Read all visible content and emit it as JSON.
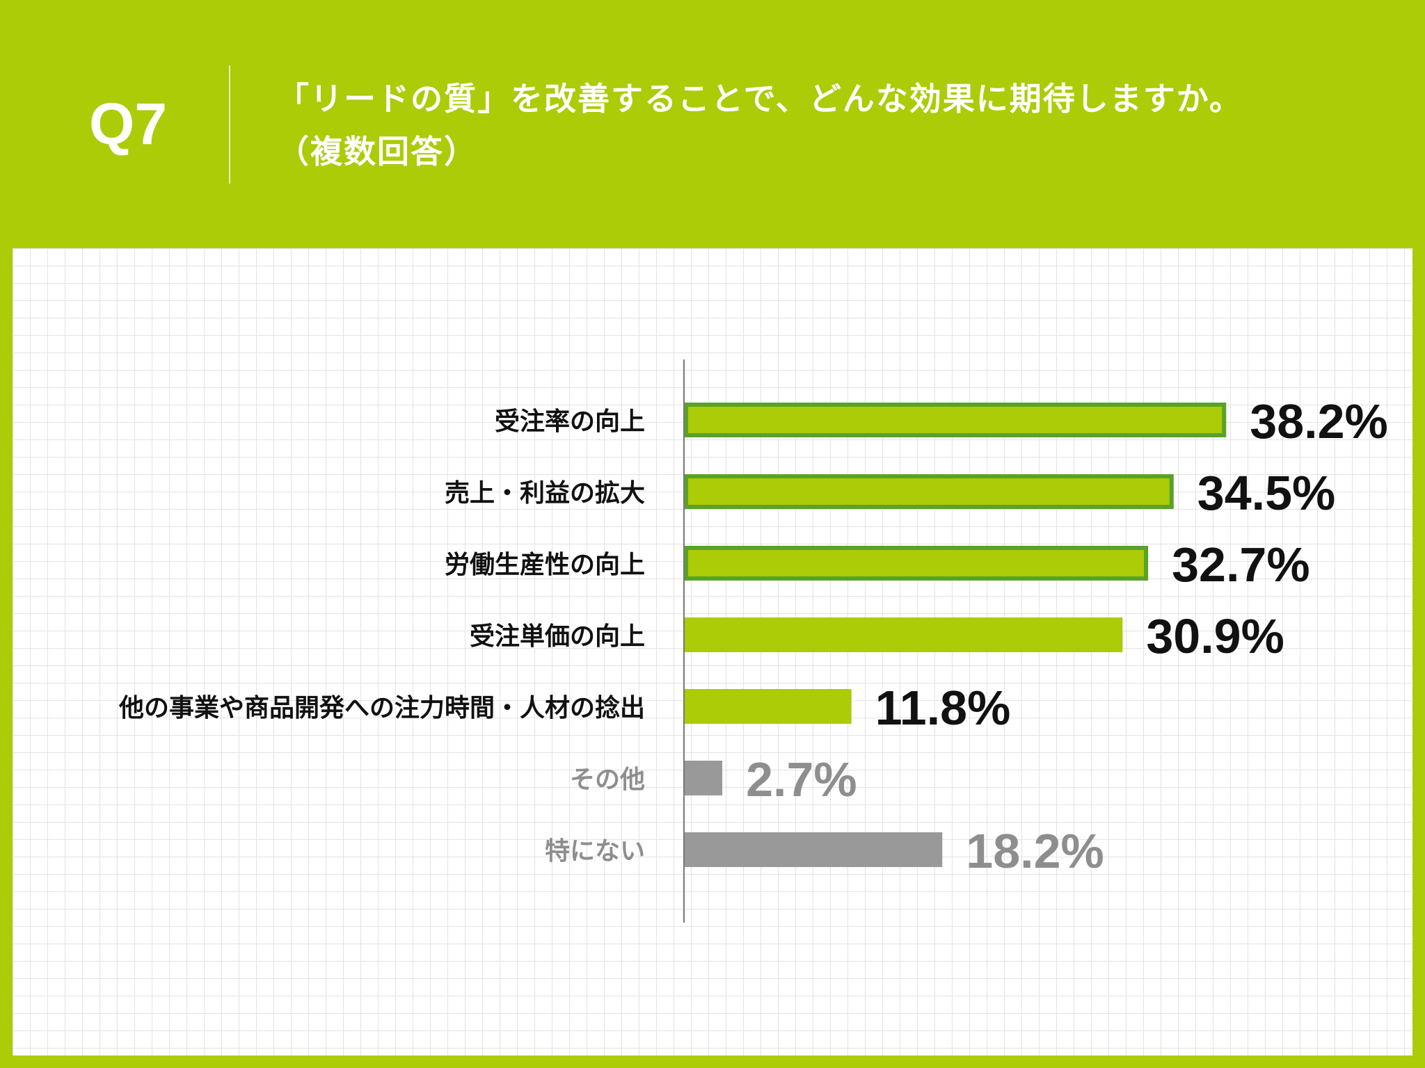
{
  "header": {
    "question_number": "Q7",
    "title_line1": "「リードの質」を改善することで、どんな効果に期待しますか。",
    "title_line2": "（複数回答）"
  },
  "colors": {
    "background_accent": "#abcc07",
    "bar_green": "#abcc07",
    "bar_highlight_border": "#5aa12a",
    "bar_gray": "#999999",
    "label_dark": "#111111",
    "label_gray": "#8e8e8e"
  },
  "chart_data": {
    "type": "bar",
    "orientation": "horizontal",
    "categories": [
      "受注率の向上",
      "売上・利益の拡大",
      "労働生産性の向上",
      "受注単価の向上",
      "他の事業や商品開発への注力時間・人材の捻出",
      "その他",
      "特にない"
    ],
    "values": [
      38.2,
      34.5,
      32.7,
      30.9,
      11.8,
      2.7,
      18.2
    ],
    "value_labels": [
      "38.2%",
      "34.5%",
      "32.7%",
      "30.9%",
      "11.8%",
      "2.7%",
      "18.2%"
    ],
    "highlighted": [
      true,
      true,
      true,
      false,
      false,
      false,
      false
    ],
    "styles": [
      "green",
      "green",
      "green",
      "green",
      "green",
      "gray",
      "gray"
    ],
    "unit": "%",
    "xlim": [
      0,
      50
    ],
    "grid": true,
    "legend": "none"
  }
}
